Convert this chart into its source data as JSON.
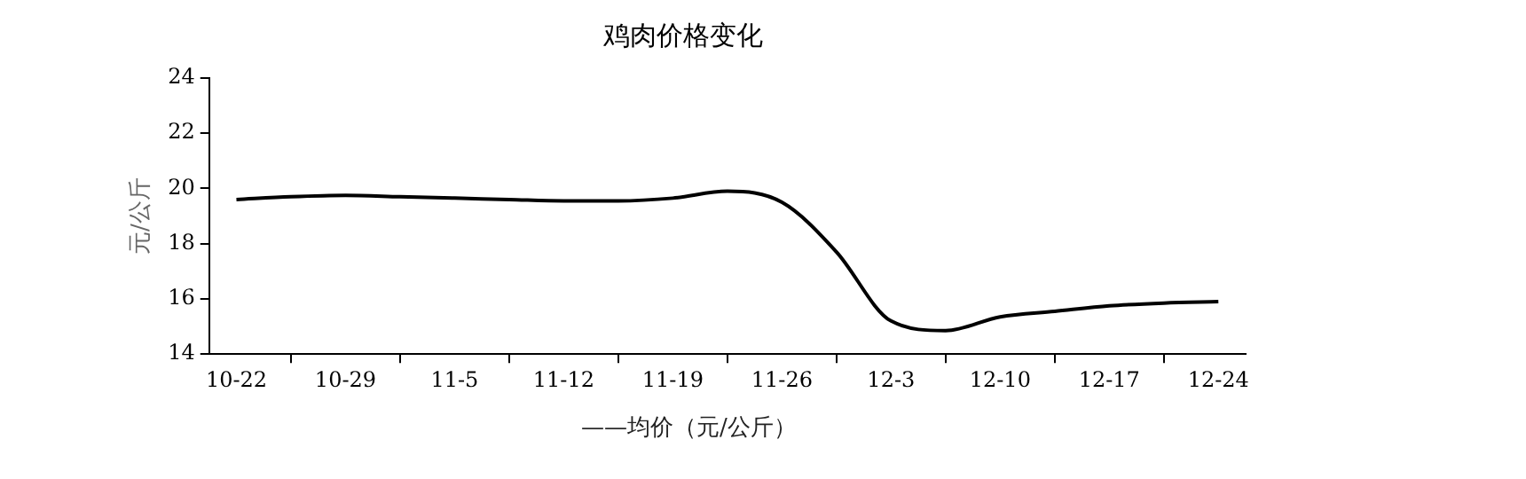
{
  "chart_data": {
    "type": "line",
    "title": "鸡肉价格变化",
    "ylabel": "元/公斤",
    "categories": [
      "10-22",
      null,
      "10-29",
      null,
      "11-5",
      null,
      "11-12",
      null,
      "11-19",
      null,
      "11-26",
      null,
      "12-3",
      null,
      "12-10",
      null,
      "12-17",
      null,
      "12-24"
    ],
    "series": [
      {
        "name": "——均价（元/公斤）",
        "color": "#000000",
        "values": [
          19.6,
          19.7,
          19.75,
          19.7,
          19.65,
          19.6,
          19.55,
          19.55,
          19.65,
          19.9,
          19.5,
          17.7,
          15.2,
          14.85,
          15.35,
          15.55,
          15.75,
          15.85,
          15.9
        ]
      }
    ],
    "ylim": [
      14,
      24
    ],
    "yticks": [
      14,
      16,
      18,
      20,
      22,
      24
    ],
    "grid": false,
    "legend": "bottom",
    "marker": "none",
    "line_style": "solid"
  }
}
